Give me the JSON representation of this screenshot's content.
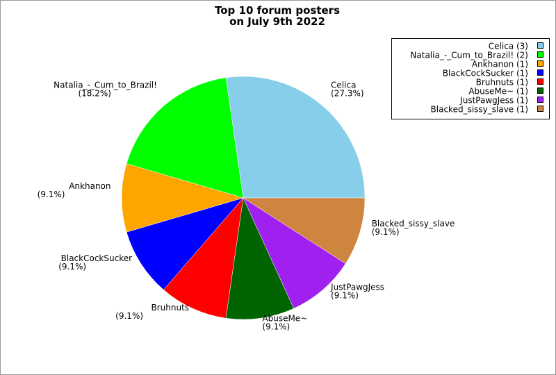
{
  "chart_data": {
    "type": "pie",
    "title": [
      "Top 10 forum posters",
      "on July 9th 2022"
    ],
    "categories": [
      "Celica",
      "Natalia_-_Cum_to_Brazil!",
      "Ankhanon",
      "BlackCockSucker",
      "Bruhnuts",
      "AbuseMe~",
      "JustPawgJess",
      "Blacked_sissy_slave"
    ],
    "values": [
      27.3,
      18.2,
      9.1,
      9.1,
      9.1,
      9.1,
      9.1,
      9.1
    ],
    "value_labels": [
      "(27.3%)",
      "(18.2%)",
      "(9.1%)",
      "(9.1%)",
      "(9.1%)",
      "(9.1%)",
      "(9.1%)",
      "(9.1%)"
    ],
    "legend": [
      "Celica (3)",
      "Natalia_-_Cum_to_Brazil! (2)",
      "Ankhanon (1)",
      "BlackCockSucker (1)",
      "Bruhnuts (1)",
      "AbuseMe~ (1)",
      "JustPawgJess (1)",
      "Blacked_sissy_slave (1)"
    ],
    "colors": [
      "#87ceeb",
      "#00ff00",
      "#ffa500",
      "#0000ff",
      "#ff0000",
      "#006400",
      "#a020f0",
      "#cd853f"
    ],
    "legend_position": "upper right"
  }
}
